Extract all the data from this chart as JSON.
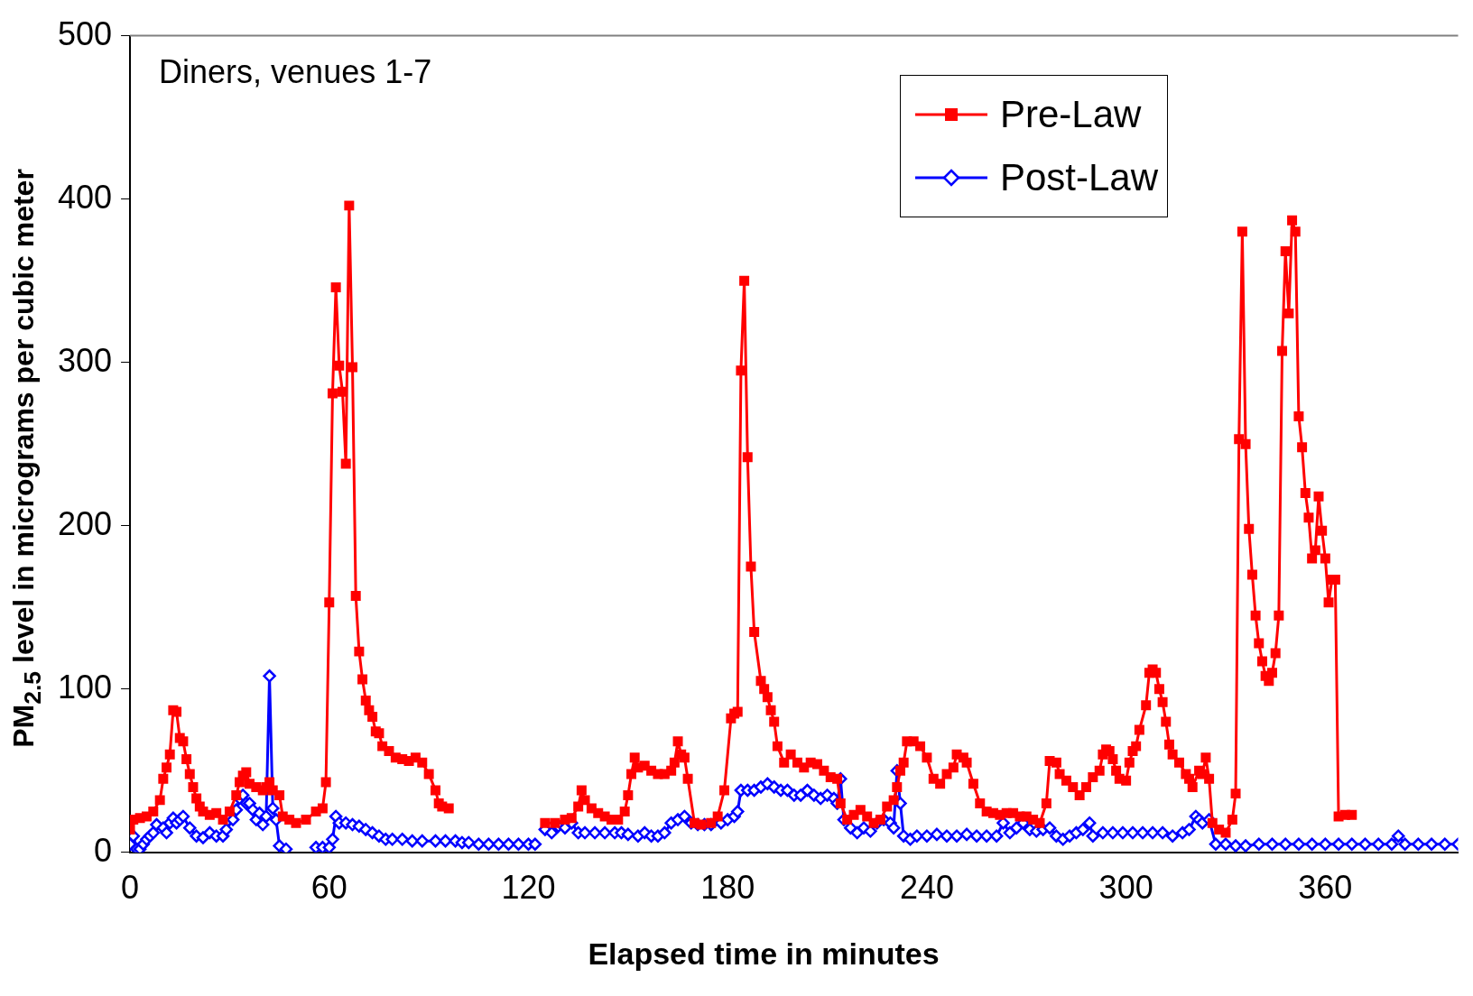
{
  "chart_data": {
    "type": "line",
    "xlabel": "Elapsed time in minutes",
    "ylabel": "PM$_{2.5}$ level in micrograms per cubic meter",
    "annotations": [
      "Diners, venues 1-7"
    ],
    "xlim": [
      0,
      400
    ],
    "xticks": [
      0,
      60,
      120,
      180,
      240,
      300,
      360
    ],
    "ylim": [
      0,
      500
    ],
    "yticks": [
      0,
      100,
      200,
      300,
      400,
      500
    ],
    "grid": false,
    "legend": "top right",
    "line_style": "solid",
    "series": [
      {
        "name": "Pre-Law",
        "color": "#ff0000",
        "marker": "square",
        "x": [
          0,
          1,
          3,
          5,
          7,
          9,
          10,
          11,
          12,
          13,
          14,
          15,
          16,
          17,
          18,
          19,
          20,
          21,
          22,
          24,
          26,
          28,
          30,
          32,
          33,
          34,
          35,
          36,
          38,
          40,
          41,
          42,
          43,
          45,
          46,
          48,
          50,
          53,
          56,
          58,
          59,
          60,
          61,
          62,
          63,
          64,
          65,
          66,
          67,
          68,
          69,
          70,
          71,
          72,
          73,
          74,
          75,
          76,
          78,
          80,
          82,
          84,
          86,
          88,
          90,
          92,
          93,
          94,
          96,
          110,
          125,
          128,
          131,
          133,
          135,
          136,
          137,
          139,
          141,
          143,
          145,
          147,
          149,
          150,
          151,
          152,
          153,
          155,
          157,
          159,
          161,
          163,
          164,
          165,
          166,
          167,
          168,
          170,
          172,
          175,
          177,
          179,
          181,
          182,
          183,
          184,
          185,
          186,
          187,
          188,
          190,
          191,
          192,
          193,
          194,
          195,
          197,
          199,
          201,
          203,
          205,
          207,
          209,
          211,
          213,
          214,
          216,
          218,
          220,
          222,
          224,
          226,
          228,
          230,
          231,
          232,
          233,
          234,
          236,
          238,
          240,
          242,
          244,
          246,
          248,
          249,
          251,
          252,
          254,
          256,
          258,
          260,
          262,
          264,
          266,
          268,
          270,
          272,
          274,
          276,
          277,
          279,
          280,
          282,
          284,
          286,
          288,
          290,
          292,
          293,
          294,
          295,
          296,
          297,
          298,
          300,
          301,
          302,
          303,
          304,
          306,
          307,
          308,
          309,
          310,
          311,
          312,
          313,
          314,
          316,
          318,
          319,
          320,
          322,
          323,
          324,
          325,
          326,
          328,
          330,
          332,
          333,
          334,
          335,
          336,
          337,
          338,
          339,
          340,
          341,
          342,
          343,
          344,
          345,
          346,
          347,
          348,
          349,
          350,
          351,
          352,
          353,
          354,
          355,
          356,
          357,
          358,
          359,
          360,
          361,
          362,
          363,
          364,
          366,
          368
        ],
        "values": [
          14,
          20,
          21,
          22,
          25,
          32,
          45,
          52,
          60,
          87,
          86,
          70,
          68,
          57,
          48,
          40,
          33,
          28,
          25,
          23,
          24,
          20,
          25,
          35,
          43,
          47,
          49,
          42,
          40,
          38,
          40,
          43,
          38,
          35,
          22,
          20,
          18,
          20,
          25,
          27,
          43,
          153,
          281,
          346,
          298,
          282,
          238,
          396,
          297,
          157,
          123,
          106,
          93,
          87,
          83,
          74,
          73,
          65,
          62,
          58,
          57,
          56,
          58,
          55,
          48,
          38,
          30,
          28,
          27,
          null,
          18,
          18,
          20,
          21,
          28,
          38,
          32,
          27,
          24,
          22,
          20,
          20,
          25,
          35,
          48,
          58,
          52,
          53,
          50,
          48,
          48,
          50,
          55,
          68,
          60,
          58,
          45,
          18,
          17,
          18,
          22,
          38,
          82,
          85,
          86,
          295,
          350,
          242,
          175,
          135,
          105,
          100,
          95,
          87,
          80,
          65,
          55,
          60,
          55,
          52,
          55,
          54,
          50,
          46,
          45,
          30,
          20,
          23,
          26,
          22,
          18,
          20,
          28,
          32,
          40,
          50,
          55,
          68,
          68,
          65,
          58,
          45,
          42,
          48,
          52,
          60,
          58,
          55,
          42,
          30,
          25,
          24,
          23,
          24,
          24,
          22,
          22,
          20,
          18,
          30,
          56,
          55,
          48,
          44,
          40,
          35,
          40,
          46,
          50,
          60,
          63,
          62,
          57,
          50,
          45,
          44,
          55,
          62,
          65,
          75,
          90,
          110,
          112,
          110,
          100,
          92,
          80,
          66,
          60,
          55,
          48,
          45,
          40,
          50,
          48,
          58,
          45,
          18,
          14,
          12,
          20,
          36,
          253,
          380,
          250,
          198,
          170,
          145,
          128,
          117,
          108,
          105,
          110,
          122,
          145,
          307,
          368,
          330,
          387,
          380,
          267,
          248,
          220,
          205,
          180,
          185,
          218,
          197,
          180,
          153,
          167,
          167,
          22,
          23,
          23
        ]
      },
      {
        "name": "Post-Law",
        "color": "#0000ff",
        "marker": "diamond",
        "x": [
          0,
          1,
          2,
          3,
          4,
          5,
          6,
          7,
          8,
          10,
          11,
          12,
          13,
          14,
          15,
          16,
          18,
          20,
          22,
          24,
          26,
          28,
          29,
          31,
          32,
          33,
          34,
          35,
          36,
          37,
          38,
          39,
          40,
          41,
          42,
          43,
          44,
          45,
          47,
          52,
          56,
          58,
          60,
          61,
          62,
          63,
          65,
          67,
          69,
          71,
          73,
          75,
          77,
          79,
          82,
          85,
          88,
          92,
          95,
          98,
          100,
          102,
          105,
          108,
          111,
          114,
          117,
          120,
          122,
          124,
          125,
          127,
          129,
          131,
          133,
          135,
          137,
          140,
          143,
          146,
          148,
          150,
          153,
          155,
          157,
          159,
          161,
          163,
          165,
          167,
          169,
          171,
          173,
          175,
          178,
          180,
          182,
          183,
          184,
          186,
          188,
          190,
          192,
          194,
          196,
          198,
          200,
          202,
          204,
          206,
          208,
          210,
          212,
          213,
          214,
          215,
          217,
          219,
          221,
          223,
          225,
          227,
          229,
          230,
          231,
          232,
          233,
          235,
          237,
          240,
          243,
          246,
          249,
          252,
          255,
          258,
          261,
          263,
          265,
          267,
          269,
          271,
          273,
          275,
          277,
          279,
          281,
          283,
          285,
          287,
          289,
          290,
          293,
          296,
          299,
          302,
          305,
          308,
          311,
          314,
          317,
          319,
          321,
          322,
          323,
          325,
          327,
          330,
          333,
          336,
          340,
          344,
          348,
          352,
          356,
          360,
          364,
          368,
          372,
          376,
          380,
          382,
          384,
          388,
          392,
          396,
          400
        ],
        "values": [
          5,
          10,
          2,
          2,
          5,
          8,
          10,
          12,
          17,
          15,
          12,
          18,
          21,
          18,
          20,
          22,
          15,
          10,
          9,
          12,
          10,
          10,
          14,
          20,
          26,
          33,
          35,
          30,
          30,
          26,
          20,
          24,
          17,
          22,
          108,
          27,
          20,
          4,
          2,
          null,
          3,
          3,
          3,
          8,
          22,
          18,
          18,
          17,
          16,
          14,
          12,
          10,
          8,
          8,
          8,
          7,
          7,
          7,
          7,
          7,
          6,
          6,
          5,
          5,
          5,
          5,
          5,
          5,
          5,
          null,
          14,
          12,
          16,
          15,
          18,
          12,
          12,
          12,
          12,
          12,
          12,
          11,
          10,
          12,
          10,
          10,
          12,
          18,
          20,
          22,
          18,
          17,
          17,
          17,
          18,
          20,
          22,
          25,
          38,
          38,
          38,
          40,
          42,
          40,
          38,
          38,
          35,
          35,
          38,
          35,
          33,
          35,
          33,
          30,
          45,
          20,
          15,
          12,
          15,
          13,
          18,
          20,
          18,
          15,
          50,
          30,
          10,
          8,
          10,
          10,
          11,
          10,
          10,
          11,
          10,
          10,
          10,
          18,
          12,
          15,
          18,
          14,
          13,
          14,
          15,
          10,
          8,
          10,
          12,
          14,
          18,
          10,
          12,
          12,
          12,
          12,
          12,
          12,
          12,
          10,
          12,
          14,
          22,
          20,
          18,
          20,
          5,
          5,
          4,
          4,
          5,
          5,
          5,
          5,
          5,
          5,
          5,
          5,
          5,
          5,
          5,
          10,
          5,
          5,
          5,
          5,
          5
        ]
      }
    ]
  }
}
